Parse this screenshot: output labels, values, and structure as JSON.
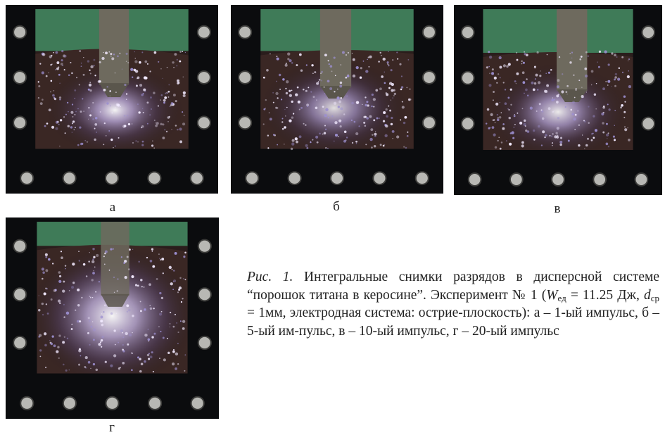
{
  "figure": {
    "panels": [
      {
        "id": "a",
        "letter": "а"
      },
      {
        "id": "b",
        "letter": "б"
      },
      {
        "id": "v",
        "letter": "в"
      },
      {
        "id": "g",
        "letter": "г"
      }
    ],
    "caption": {
      "label": "Рис. 1.",
      "line1_text": " Интегральные снимки разрядов в дисперсной системе “порошок титана в керосине”. Эксперимент № 1 (",
      "w_symbol": "W",
      "w_subscript": "ед",
      "w_value": " = 11.25 Дж, ",
      "d_symbol": "d",
      "d_subscript": "ср",
      "d_value": " = 1мм, электродная система: острие-плоскость): а – 1-ый импульс, б – 5-ый им-пульс, в – 10-ый импульс, г – 20-ый импульс"
    }
  },
  "colors": {
    "frame": "#0b0c0e",
    "background_green": "#3f7b58",
    "electrode": "#6e6a5e",
    "spark": "#f2eaff",
    "bolt": "#b8b8b4"
  }
}
